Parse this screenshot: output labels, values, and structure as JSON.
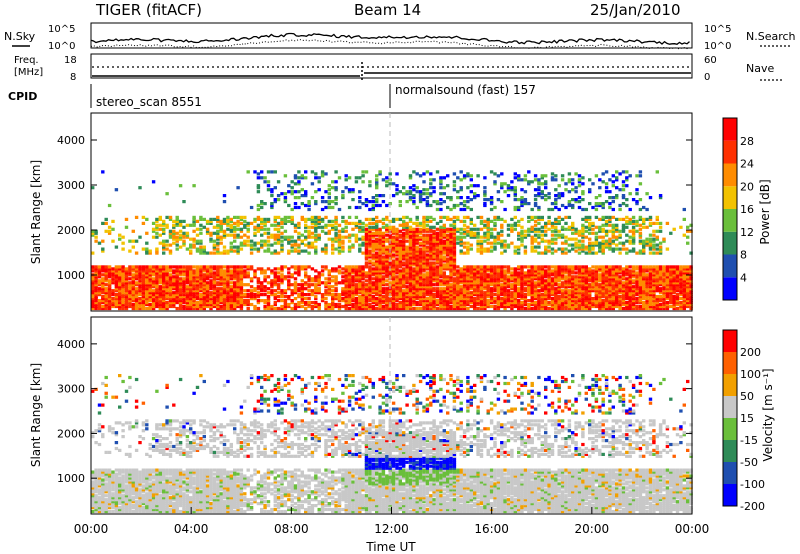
{
  "header": {
    "title": "TIGER (fitACF)",
    "beam": "Beam 14",
    "date": "25/Jan/2010"
  },
  "top_panels": {
    "nsky_label": "N.Sky",
    "nsearch_label": "N.Search",
    "count_ticks": [
      "10^5",
      "10^0"
    ],
    "freq_label_1": "Freq.",
    "freq_label_2": "[MHz]",
    "freq_ticks": [
      "18",
      "8"
    ],
    "nave_label": "Nave",
    "nave_ticks": [
      "60",
      "0"
    ],
    "cpid_label": "CPID",
    "cpid_1": "stereo_scan 8551",
    "cpid_2": "normalsound (fast) 157"
  },
  "chart_data": [
    {
      "type": "heatmap",
      "name": "power",
      "ylabel": "Slant Range [km]",
      "ylim": [
        200,
        4600
      ],
      "xlim": [
        "00:00",
        "24:00"
      ],
      "yticks": [
        "4000",
        "3000",
        "2000",
        "1000"
      ],
      "colorbar_label": "Power [dB]",
      "colorbar_ticks": [
        "28",
        "24",
        "20",
        "16",
        "12",
        "8",
        "4"
      ],
      "colors": [
        "#0000ff",
        "#1f4fb0",
        "#2e8b57",
        "#6abf3b",
        "#f2c200",
        "#ff8c00",
        "#ff3000",
        "#ff0000"
      ]
    },
    {
      "type": "heatmap",
      "name": "velocity",
      "ylabel": "Slant Range [km]",
      "ylim": [
        200,
        4600
      ],
      "xlim": [
        "00:00",
        "24:00"
      ],
      "yticks": [
        "4000",
        "3000",
        "2000",
        "1000"
      ],
      "colorbar_label": "Velocity [m s⁻¹]",
      "colorbar_ticks": [
        "200",
        "100",
        "50",
        "15",
        "-15",
        "-50",
        "-100",
        "-200"
      ],
      "colors": [
        "#0000ff",
        "#1f4fb0",
        "#2e8b57",
        "#6abf3b",
        "#c8c8c8",
        "#f2a000",
        "#ff6000",
        "#ff0000"
      ]
    }
  ],
  "xaxis": {
    "ticks": [
      "00:00",
      "04:00",
      "08:00",
      "12:00",
      "16:00",
      "20:00",
      "00:00"
    ],
    "label": "Time UT"
  }
}
